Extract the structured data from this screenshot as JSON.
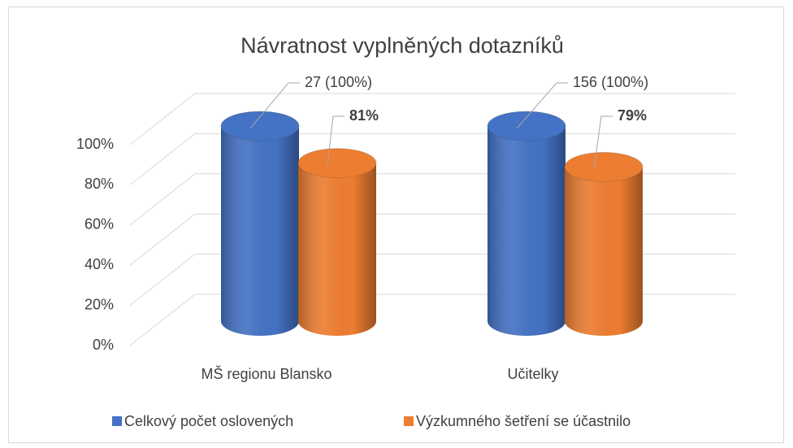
{
  "chart_data": {
    "type": "bar3d",
    "title": "Návratnost vyplněných dotazníků",
    "categories": [
      "MŠ regionu Blansko",
      "Učitelky"
    ],
    "series": [
      {
        "name": "Celkový počet oslovených",
        "color": "#4472c4",
        "values": [
          100,
          100
        ],
        "value_labels": [
          "27 (100%)",
          "156 (100%)"
        ]
      },
      {
        "name": "Výzkumného šetření se účastnilo",
        "color": "#ed7d31",
        "values": [
          81,
          79
        ],
        "value_labels": [
          "81%",
          "79%"
        ]
      }
    ],
    "ylim": [
      0,
      100
    ],
    "yticks": [
      {
        "value": 0,
        "label": "0%"
      },
      {
        "value": 20,
        "label": "20%"
      },
      {
        "value": 40,
        "label": "40%"
      },
      {
        "value": 60,
        "label": "60%"
      },
      {
        "value": 80,
        "label": "80%"
      },
      {
        "value": 100,
        "label": "100%"
      }
    ],
    "grid": true,
    "legend": "bottom"
  }
}
